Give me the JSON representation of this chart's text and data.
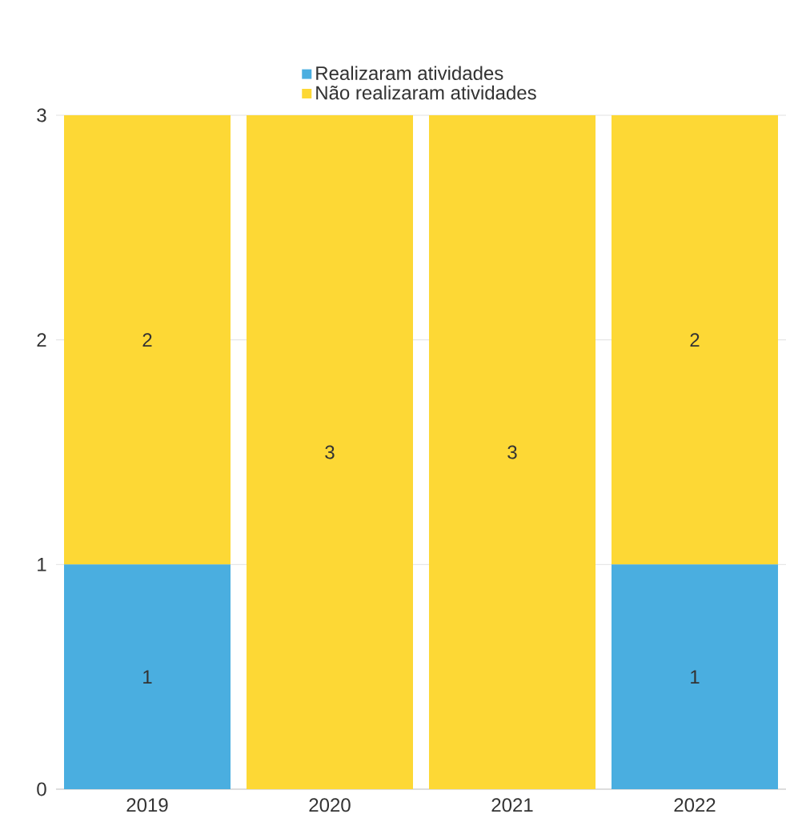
{
  "chart_data": {
    "type": "bar",
    "stacked": true,
    "categories": [
      "2019",
      "2020",
      "2021",
      "2022"
    ],
    "series": [
      {
        "name": "Realizaram atividades",
        "color": "#4aaee0",
        "values": [
          1,
          0,
          0,
          1
        ],
        "value_labels": [
          "1",
          null,
          null,
          "1"
        ]
      },
      {
        "name": "Não realizaram atividades",
        "color": "#fdd835",
        "values": [
          2,
          3,
          3,
          2
        ],
        "value_labels": [
          "2",
          "3",
          "3",
          "2"
        ]
      }
    ],
    "ylim": [
      0,
      3
    ],
    "yticks": [
      0,
      1,
      2,
      3
    ],
    "grid": "y",
    "legend": "top"
  }
}
